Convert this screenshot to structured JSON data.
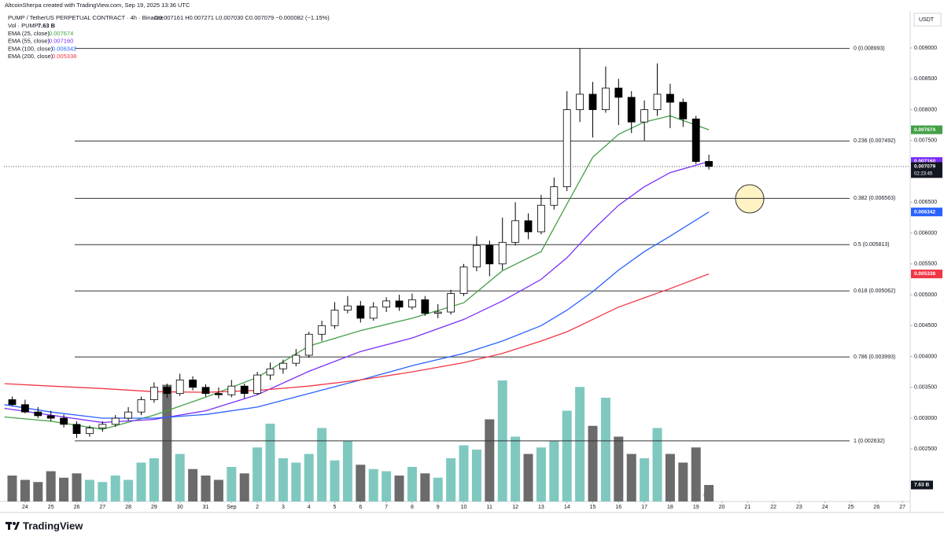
{
  "header": {
    "credit": "AltcoinSherpa created with TradingView.com, Sep 19, 2025 13:36 UTC",
    "symbol": "PUMP / TetherUS PERPETUAL CONTRACT · 4h · Binance",
    "ohlc": "O0.007161 H0.007271 L0.007030 C0.007079 −0.000082 (−1.15%)",
    "currency": "USDT",
    "countdown": "02:23:45",
    "brand": "TradingView"
  },
  "chart_data": {
    "type": "candlestick",
    "x": [
      23.5,
      24,
      24.5,
      25,
      25.5,
      26,
      26.5,
      27,
      27.5,
      28,
      28.5,
      29,
      29.5,
      30,
      30.5,
      31,
      31.5,
      32,
      32.5,
      33,
      33.5,
      34,
      34.5,
      35,
      35.5,
      36,
      36.5,
      37,
      37.5,
      38,
      38.5,
      39,
      39.5,
      40,
      40.5,
      41,
      41.5,
      42,
      42.5,
      43,
      43.5,
      44,
      44.5,
      45,
      45.5,
      46,
      46.5,
      47,
      47.5,
      48,
      48.5,
      49,
      49.5,
      50,
      50.5
    ],
    "open": [
      0.0033,
      0.00322,
      0.0031,
      0.00304,
      0.003,
      0.0029,
      0.00275,
      0.00284,
      0.0029,
      0.003,
      0.0031,
      0.0033,
      0.0035,
      0.0034,
      0.00362,
      0.0035,
      0.0034,
      0.00338,
      0.00352,
      0.0034,
      0.0037,
      0.0038,
      0.00389,
      0.00402,
      0.00436,
      0.0045,
      0.00475,
      0.00482,
      0.00462,
      0.0048,
      0.0049,
      0.0048,
      0.00492,
      0.0047,
      0.00472,
      0.00502,
      0.00545,
      0.0058,
      0.0055,
      0.00585,
      0.0062,
      0.00602,
      0.00645,
      0.00675,
      0.008,
      0.00825,
      0.008,
      0.00835,
      0.0082,
      0.0078,
      0.008,
      0.00825,
      0.00812,
      0.00785,
      0.007161
    ],
    "high": [
      0.00335,
      0.0033,
      0.00318,
      0.00312,
      0.00306,
      0.00295,
      0.00288,
      0.00295,
      0.00305,
      0.00318,
      0.00335,
      0.00358,
      0.00356,
      0.00372,
      0.00368,
      0.00355,
      0.0035,
      0.00362,
      0.00356,
      0.00375,
      0.0039,
      0.00395,
      0.00412,
      0.0044,
      0.00458,
      0.00488,
      0.00498,
      0.0049,
      0.00488,
      0.00496,
      0.005,
      0.00502,
      0.00498,
      0.00485,
      0.00508,
      0.0055,
      0.00595,
      0.00588,
      0.00625,
      0.0065,
      0.00632,
      0.00662,
      0.0069,
      0.0083,
      0.00899,
      0.00845,
      0.0087,
      0.0085,
      0.0083,
      0.00815,
      0.00875,
      0.00842,
      0.00818,
      0.0079,
      0.007271
    ],
    "low": [
      0.0032,
      0.00308,
      0.003,
      0.00295,
      0.00285,
      0.00268,
      0.0027,
      0.00278,
      0.00286,
      0.00296,
      0.00305,
      0.00325,
      0.00333,
      0.00336,
      0.00345,
      0.00335,
      0.00332,
      0.00334,
      0.00332,
      0.00338,
      0.00362,
      0.00372,
      0.00384,
      0.00398,
      0.00425,
      0.00445,
      0.0047,
      0.00455,
      0.00458,
      0.00472,
      0.00474,
      0.00476,
      0.00466,
      0.00462,
      0.00468,
      0.00498,
      0.00538,
      0.0053,
      0.0054,
      0.0058,
      0.0059,
      0.00598,
      0.00638,
      0.00668,
      0.0078,
      0.00755,
      0.00795,
      0.00775,
      0.00762,
      0.0075,
      0.0079,
      0.0077,
      0.00772,
      0.00712,
      0.00703
    ],
    "close": [
      0.00322,
      0.0031,
      0.00304,
      0.003,
      0.0029,
      0.00275,
      0.00284,
      0.0029,
      0.003,
      0.0031,
      0.0033,
      0.0035,
      0.0034,
      0.00362,
      0.0035,
      0.0034,
      0.00338,
      0.00352,
      0.0034,
      0.0037,
      0.0038,
      0.00389,
      0.00402,
      0.00436,
      0.0045,
      0.00475,
      0.00482,
      0.00462,
      0.0048,
      0.0049,
      0.0048,
      0.00492,
      0.0047,
      0.00472,
      0.00502,
      0.00545,
      0.0058,
      0.0055,
      0.00585,
      0.0062,
      0.00602,
      0.00645,
      0.00675,
      0.008,
      0.00825,
      0.008,
      0.00835,
      0.0082,
      0.0078,
      0.008,
      0.00825,
      0.00812,
      0.00785,
      0.00716,
      0.007079
    ],
    "up_color": "#ffffff",
    "down_color": "#000000",
    "volume": {
      "name": "Vol · PUMP",
      "ylim": [
        0,
        100
      ],
      "up_color": "#7fc8c0",
      "down_color": "#6b6b6b",
      "last_label": "7.63 B",
      "values": [
        12,
        10,
        9,
        14,
        11,
        13,
        10,
        9,
        12,
        10,
        18,
        20,
        54,
        22,
        15,
        12,
        10,
        16,
        13,
        25,
        36,
        20,
        18,
        22,
        34,
        19,
        28,
        17,
        15,
        14,
        12,
        16,
        13,
        11,
        20,
        26,
        24,
        38,
        56,
        30,
        22,
        25,
        28,
        42,
        53,
        35,
        48,
        30,
        22,
        20,
        34,
        22,
        18,
        25,
        7.63
      ]
    },
    "series": [
      {
        "name": "EMA (25, close)",
        "color": "#43a047",
        "last_label": "0.007674",
        "x": [
          23.2,
          25,
          27,
          29,
          31,
          33,
          35,
          37,
          39,
          41,
          42.5,
          44,
          45,
          46,
          47,
          48,
          49,
          50.5
        ],
        "values": [
          0.00302,
          0.00295,
          0.00282,
          0.00305,
          0.00334,
          0.00366,
          0.00417,
          0.00442,
          0.00462,
          0.00487,
          0.00539,
          0.0057,
          0.00647,
          0.00723,
          0.0076,
          0.0078,
          0.0079,
          0.007674
        ]
      },
      {
        "name": "EMA (55, close)",
        "color": "#7b2ff7",
        "last_label": "0.007160",
        "x": [
          23.2,
          25,
          27,
          29,
          31,
          33,
          35,
          37,
          39,
          41,
          42.5,
          44,
          45,
          46,
          47,
          48,
          49,
          50.5
        ],
        "values": [
          0.00316,
          0.00305,
          0.00293,
          0.00298,
          0.00312,
          0.00338,
          0.00376,
          0.00408,
          0.0043,
          0.0046,
          0.0049,
          0.00525,
          0.0056,
          0.00605,
          0.00645,
          0.00675,
          0.00698,
          0.00716
        ]
      },
      {
        "name": "EMA (100, close)",
        "color": "#2962ff",
        "last_label": "0.006342",
        "x": [
          23.2,
          25,
          27,
          29,
          31,
          33,
          35,
          37,
          39,
          41,
          42.5,
          44,
          45,
          46,
          47,
          48,
          49,
          50.5
        ],
        "values": [
          0.00322,
          0.0031,
          0.003,
          0.003,
          0.00306,
          0.00318,
          0.0034,
          0.00362,
          0.00385,
          0.00405,
          0.00425,
          0.0045,
          0.00475,
          0.00505,
          0.0054,
          0.0057,
          0.00595,
          0.006342
        ]
      },
      {
        "name": "EMA (200, close)",
        "color": "#f23645",
        "last_label": "0.005338",
        "x": [
          23.2,
          25,
          27,
          29,
          31,
          33,
          35,
          37,
          39,
          41,
          42.5,
          44,
          45,
          46,
          47,
          48,
          49,
          50.5
        ],
        "values": [
          0.00356,
          0.00352,
          0.00348,
          0.00343,
          0.00342,
          0.00345,
          0.00352,
          0.00362,
          0.00375,
          0.0039,
          0.00405,
          0.00425,
          0.0044,
          0.0046,
          0.0048,
          0.00495,
          0.0051,
          0.005338
        ]
      }
    ],
    "fib_levels": [
      {
        "value": 0.008993,
        "label": "0 (0.008993)"
      },
      {
        "value": 0.007492,
        "label": "0.236 (0.007492)"
      },
      {
        "value": 0.006563,
        "label": "0.382 (0.006563)"
      },
      {
        "value": 0.005813,
        "label": "0.5 (0.005813)"
      },
      {
        "value": 0.005062,
        "label": "0.618 (0.005062)"
      },
      {
        "value": 0.003993,
        "label": "0.786 (0.003993)"
      },
      {
        "value": 0.002632,
        "label": "1 (0.002632)"
      }
    ],
    "xlim": [
      23.18,
      58.24
    ],
    "xticks": [
      24,
      25,
      26,
      27,
      28,
      29,
      30,
      31,
      {
        "value": 32,
        "label": "Sep"
      },
      {
        "value": 33,
        "label": "2"
      },
      {
        "value": 34,
        "label": "3"
      },
      {
        "value": 35,
        "label": "4"
      },
      {
        "value": 36,
        "label": "5"
      },
      {
        "value": 37,
        "label": "6"
      },
      {
        "value": 38,
        "label": "7"
      },
      {
        "value": 39,
        "label": "8"
      },
      {
        "value": 40,
        "label": "9"
      },
      {
        "value": 41,
        "label": "10"
      },
      {
        "value": 42,
        "label": "11"
      },
      {
        "value": 43,
        "label": "12"
      },
      {
        "value": 44,
        "label": "13"
      },
      {
        "value": 45,
        "label": "14"
      },
      {
        "value": 46,
        "label": "15"
      },
      {
        "value": 47,
        "label": "16"
      },
      {
        "value": 48,
        "label": "17"
      },
      {
        "value": 49,
        "label": "18"
      },
      {
        "value": 50,
        "label": "19"
      },
      {
        "value": 51,
        "label": "20"
      },
      {
        "value": 52,
        "label": "21"
      },
      {
        "value": 53,
        "label": "22"
      },
      {
        "value": 54,
        "label": "23"
      },
      {
        "value": 55,
        "label": "24"
      },
      {
        "value": 56,
        "label": "25"
      },
      {
        "value": 57,
        "label": "26"
      },
      {
        "value": 58,
        "label": "27"
      }
    ],
    "ylim": [
      0.00165,
      0.009548
    ],
    "yticks": [
      {
        "value": 0.0025,
        "label": "0.002500"
      },
      {
        "value": 0.003,
        "label": "0.003000"
      },
      {
        "value": 0.0035,
        "label": "0.003500"
      },
      {
        "value": 0.004,
        "label": "0.004000"
      },
      {
        "value": 0.0045,
        "label": "0.004500"
      },
      {
        "value": 0.005,
        "label": "0.005000"
      },
      {
        "value": 0.0055,
        "label": "0.005500"
      },
      {
        "value": 0.006,
        "label": "0.006000"
      },
      {
        "value": 0.0065,
        "label": "0.006500"
      },
      {
        "value": 0.0075,
        "label": "0.007500"
      },
      {
        "value": 0.008,
        "label": "0.008000"
      },
      {
        "value": 0.0085,
        "label": "0.008500"
      },
      {
        "value": 0.009,
        "label": "0.009000"
      }
    ]
  }
}
